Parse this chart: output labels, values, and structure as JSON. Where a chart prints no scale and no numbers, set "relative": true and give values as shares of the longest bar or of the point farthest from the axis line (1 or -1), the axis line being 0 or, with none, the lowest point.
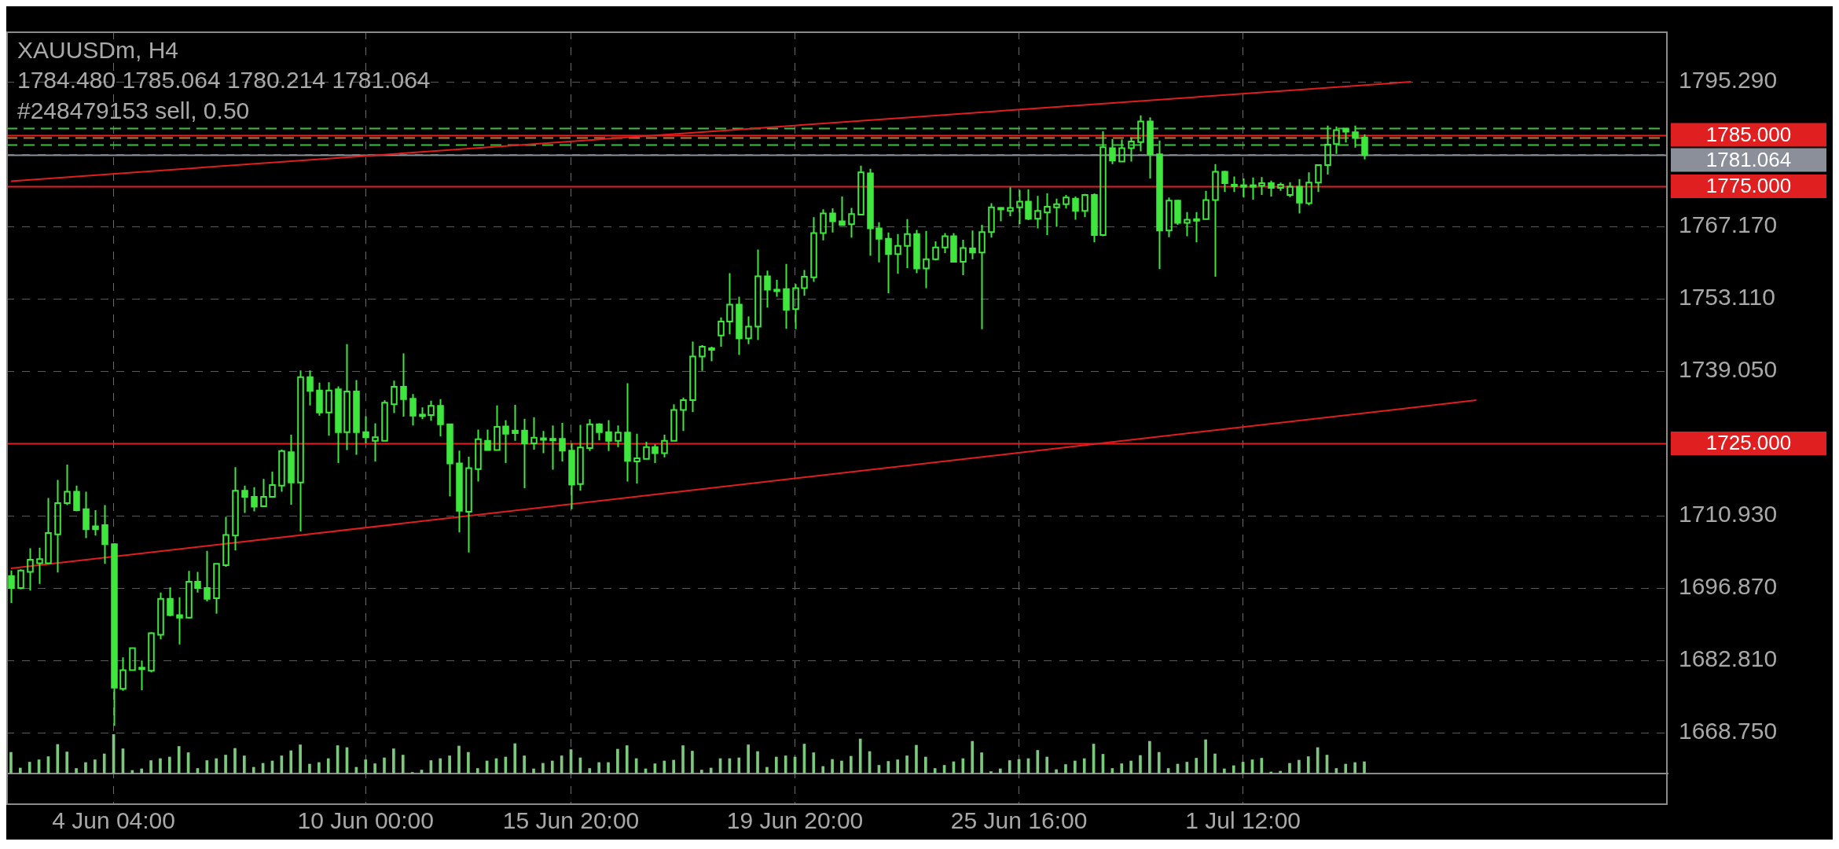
{
  "chart_data": [
    {
      "type": "candlestick",
      "title": "XAUUSDm, H4",
      "subtitle": "1784.480 1785.064 1780.214 1781.064",
      "color": "#3ee63e",
      "grid": true,
      "categories": [
        null,
        null,
        null,
        null,
        null,
        null,
        null,
        null,
        null,
        null,
        null,
        "4 Jun 04:00",
        null,
        null,
        null,
        null,
        null,
        null,
        null,
        null,
        null,
        null,
        null,
        null,
        null,
        null,
        null,
        null,
        null,
        null,
        null,
        null,
        null,
        null,
        null,
        null,
        null,
        null,
        "10 Jun 00:00",
        null,
        null,
        null,
        null,
        null,
        null,
        null,
        null,
        null,
        null,
        null,
        null,
        null,
        null,
        null,
        null,
        null,
        null,
        null,
        null,
        null,
        "15 Jun 20:00",
        null,
        null,
        null,
        null,
        null,
        null,
        null,
        null,
        null,
        null,
        null,
        null,
        null,
        null,
        null,
        null,
        null,
        null,
        null,
        null,
        null,
        null,
        null,
        "19 Jun 20:00",
        null,
        null,
        null,
        null,
        null,
        null,
        null,
        null,
        null,
        null,
        null,
        null,
        null,
        null,
        null,
        null,
        null,
        null,
        null,
        null,
        null,
        null,
        null,
        "25 Jun 16:00",
        null,
        null,
        null,
        null,
        null,
        null,
        null,
        null,
        null,
        null,
        null,
        null,
        null,
        null,
        null,
        null,
        null,
        null,
        null,
        null,
        null,
        null,
        null,
        "1 Jul 12:00",
        null,
        null,
        null,
        null,
        null,
        null,
        null,
        null,
        null,
        null,
        null,
        null,
        null,
        null,
        null,
        null,
        null,
        null,
        null,
        null,
        null,
        null,
        null,
        null,
        null,
        null,
        null,
        null,
        null,
        null,
        null,
        null,
        null,
        null,
        null,
        null,
        null,
        null,
        null,
        null,
        null,
        null,
        null,
        null,
        null
      ],
      "ylim": [
        1654.7,
        1805.1
      ],
      "yticks": [
        {
          "value": 1795.29,
          "label": "1795.290"
        },
        {
          "value": 1781.23,
          "label": null
        },
        {
          "value": 1767.17,
          "label": "1767.170"
        },
        {
          "value": 1753.11,
          "label": "1753.110"
        },
        {
          "value": 1739.05,
          "label": "1739.050"
        },
        {
          "value": 1724.99,
          "label": null
        },
        {
          "value": 1710.93,
          "label": "1710.930"
        },
        {
          "value": 1696.87,
          "label": "1696.870"
        },
        {
          "value": 1682.81,
          "label": "1682.810"
        },
        {
          "value": 1668.75,
          "label": "1668.750"
        }
      ],
      "ohlc": [
        [
          1699.2,
          1700.3,
          1694.0,
          1696.9
        ],
        [
          1696.9,
          1700.5,
          1696.6,
          1700.3
        ],
        [
          1700.0,
          1704.6,
          1696.4,
          1702.4
        ],
        [
          1701.7,
          1704.7,
          1697.7,
          1702.5
        ],
        [
          1701.7,
          1714.4,
          1701.6,
          1707.6
        ],
        [
          1707.3,
          1717.9,
          1699.9,
          1713.4
        ],
        [
          1713.4,
          1720.9,
          1713.0,
          1715.6
        ],
        [
          1715.6,
          1716.8,
          1711.8,
          1712.0
        ],
        [
          1712.2,
          1715.6,
          1706.6,
          1708.3
        ],
        [
          1708.9,
          1712.0,
          1707.1,
          1708.3
        ],
        [
          1709.1,
          1713.0,
          1701.6,
          1705.4
        ],
        [
          1705.4,
          1705.6,
          1670.1,
          1677.5
        ],
        [
          1677.3,
          1683.4,
          1676.9,
          1680.9
        ],
        [
          1680.9,
          1685.2,
          1680.9,
          1685.2
        ],
        [
          1681.2,
          1682.8,
          1677.0,
          1681.4
        ],
        [
          1680.8,
          1688.3,
          1680.5,
          1688.1
        ],
        [
          1687.8,
          1696.0,
          1686.9,
          1694.8
        ],
        [
          1694.8,
          1697.0,
          1691.4,
          1691.6
        ],
        [
          1691.6,
          1695.1,
          1685.9,
          1691.1
        ],
        [
          1691.1,
          1700.2,
          1691.0,
          1698.1
        ],
        [
          1698.1,
          1700.0,
          1696.0,
          1696.9
        ],
        [
          1696.9,
          1704.1,
          1694.3,
          1694.8
        ],
        [
          1694.9,
          1701.6,
          1691.9,
          1701.6
        ],
        [
          1701.3,
          1710.7,
          1701.0,
          1707.2
        ],
        [
          1707.1,
          1720.4,
          1704.2,
          1715.8
        ],
        [
          1715.8,
          1716.8,
          1711.5,
          1714.6
        ],
        [
          1714.6,
          1716.5,
          1711.8,
          1712.7
        ],
        [
          1712.8,
          1718.1,
          1712.8,
          1714.6
        ],
        [
          1714.6,
          1719.5,
          1714.6,
          1716.9
        ],
        [
          1716.8,
          1723.8,
          1715.6,
          1723.5
        ],
        [
          1723.3,
          1726.7,
          1713.1,
          1717.4
        ],
        [
          1717.4,
          1739.2,
          1707.9,
          1737.9
        ],
        [
          1737.9,
          1739.2,
          1732.4,
          1735.2
        ],
        [
          1735.3,
          1736.8,
          1730.4,
          1731.0
        ],
        [
          1731.0,
          1736.9,
          1726.5,
          1735.3
        ],
        [
          1735.5,
          1736.1,
          1721.2,
          1727.2
        ],
        [
          1727.2,
          1744.3,
          1723.7,
          1735.1
        ],
        [
          1735.1,
          1737.3,
          1722.8,
          1727.2
        ],
        [
          1727.2,
          1730.3,
          1725.0,
          1726.2
        ],
        [
          1725.5,
          1728.9,
          1721.5,
          1726.2
        ],
        [
          1725.5,
          1733.4,
          1725.5,
          1732.9
        ],
        [
          1732.6,
          1737.2,
          1730.9,
          1736.0
        ],
        [
          1736.0,
          1742.5,
          1730.2,
          1733.6
        ],
        [
          1733.7,
          1734.6,
          1728.5,
          1730.4
        ],
        [
          1730.6,
          1732.0,
          1729.7,
          1730.3
        ],
        [
          1730.5,
          1733.3,
          1729.4,
          1732.3
        ],
        [
          1732.3,
          1733.6,
          1726.4,
          1728.7
        ],
        [
          1728.7,
          1728.7,
          1714.7,
          1721.1
        ],
        [
          1721.1,
          1723.6,
          1707.7,
          1711.9
        ],
        [
          1711.7,
          1722.4,
          1703.8,
          1720.2
        ],
        [
          1720.0,
          1727.7,
          1717.6,
          1725.8
        ],
        [
          1725.5,
          1727.7,
          1723.6,
          1723.7
        ],
        [
          1723.7,
          1732.4,
          1723.7,
          1728.2
        ],
        [
          1728.3,
          1729.5,
          1721.2,
          1726.9
        ],
        [
          1727.5,
          1732.5,
          1725.5,
          1727.0
        ],
        [
          1727.5,
          1729.8,
          1716.3,
          1725.0
        ],
        [
          1725.0,
          1730.1,
          1723.8,
          1726.1
        ],
        [
          1726.0,
          1727.4,
          1723.1,
          1726.0
        ],
        [
          1725.9,
          1728.5,
          1719.9,
          1725.9
        ],
        [
          1725.9,
          1729.0,
          1721.5,
          1723.6
        ],
        [
          1723.6,
          1725.0,
          1712.2,
          1717.0
        ],
        [
          1717.1,
          1728.6,
          1715.8,
          1724.2
        ],
        [
          1724.1,
          1729.7,
          1723.5,
          1728.7
        ],
        [
          1728.7,
          1728.9,
          1725.6,
          1727.2
        ],
        [
          1727.2,
          1729.5,
          1723.5,
          1725.5
        ],
        [
          1725.5,
          1728.5,
          1724.3,
          1727.1
        ],
        [
          1727.1,
          1736.7,
          1717.6,
          1721.6
        ],
        [
          1721.5,
          1726.9,
          1717.2,
          1722.1
        ],
        [
          1722.0,
          1725.3,
          1721.9,
          1724.3
        ],
        [
          1724.3,
          1724.8,
          1721.2,
          1723.1
        ],
        [
          1723.1,
          1726.7,
          1722.3,
          1725.5
        ],
        [
          1725.5,
          1732.6,
          1725.5,
          1731.5
        ],
        [
          1731.5,
          1733.9,
          1727.4,
          1733.4
        ],
        [
          1733.4,
          1744.8,
          1731.1,
          1741.9
        ],
        [
          1741.9,
          1744.1,
          1739.1,
          1743.8
        ],
        [
          1743.5,
          1743.8,
          1741.0,
          1743.2
        ],
        [
          1746.0,
          1749.5,
          1743.8,
          1748.7
        ],
        [
          1748.7,
          1758.1,
          1746.2,
          1752.0
        ],
        [
          1752.0,
          1753.5,
          1742.2,
          1745.4
        ],
        [
          1745.4,
          1749.7,
          1744.3,
          1747.7
        ],
        [
          1747.7,
          1762.7,
          1745.1,
          1757.5
        ],
        [
          1757.5,
          1758.6,
          1751.4,
          1754.9
        ],
        [
          1754.9,
          1756.8,
          1753.5,
          1754.9
        ],
        [
          1755.0,
          1759.9,
          1747.3,
          1751.0
        ],
        [
          1751.1,
          1756.0,
          1747.2,
          1755.2
        ],
        [
          1755.2,
          1758.7,
          1753.7,
          1757.4
        ],
        [
          1757.3,
          1769.0,
          1756.4,
          1765.9
        ],
        [
          1765.9,
          1770.5,
          1764.5,
          1769.7
        ],
        [
          1769.7,
          1770.7,
          1766.0,
          1768.2
        ],
        [
          1768.2,
          1773.0,
          1767.3,
          1767.5
        ],
        [
          1767.6,
          1770.8,
          1765.0,
          1769.6
        ],
        [
          1769.5,
          1779.0,
          1769.4,
          1777.7
        ],
        [
          1777.5,
          1778.4,
          1761.5,
          1766.8
        ],
        [
          1766.8,
          1768.0,
          1760.2,
          1764.8
        ],
        [
          1764.8,
          1766.0,
          1754.2,
          1761.8
        ],
        [
          1761.8,
          1765.7,
          1758.0,
          1763.4
        ],
        [
          1763.4,
          1768.6,
          1759.1,
          1765.7
        ],
        [
          1765.7,
          1766.5,
          1758.1,
          1759.0
        ],
        [
          1759.0,
          1766.3,
          1755.2,
          1760.8
        ],
        [
          1760.8,
          1764.3,
          1760.6,
          1763.1
        ],
        [
          1763.1,
          1765.9,
          1762.0,
          1765.3
        ],
        [
          1765.3,
          1765.9,
          1760.2,
          1760.3
        ],
        [
          1760.3,
          1764.6,
          1757.7,
          1763.0
        ],
        [
          1762.9,
          1766.4,
          1760.8,
          1762.1
        ],
        [
          1762.1,
          1767.5,
          1747.2,
          1766.1
        ],
        [
          1766.1,
          1771.7,
          1765.0,
          1770.9
        ],
        [
          1770.8,
          1770.9,
          1768.2,
          1770.8
        ],
        [
          1770.2,
          1774.8,
          1769.2,
          1770.8
        ],
        [
          1770.9,
          1774.3,
          1767.6,
          1772.0
        ],
        [
          1772.0,
          1774.4,
          1768.4,
          1768.7
        ],
        [
          1768.7,
          1773.1,
          1766.8,
          1770.2
        ],
        [
          1769.9,
          1773.6,
          1765.5,
          1771.0
        ],
        [
          1770.9,
          1772.6,
          1767.1,
          1771.5
        ],
        [
          1771.5,
          1773.3,
          1770.7,
          1772.8
        ],
        [
          1772.6,
          1773.0,
          1768.5,
          1770.2
        ],
        [
          1770.2,
          1773.5,
          1769.0,
          1773.3
        ],
        [
          1773.3,
          1773.6,
          1764.1,
          1765.5
        ],
        [
          1765.5,
          1785.7,
          1765.3,
          1782.6
        ],
        [
          1782.4,
          1784.2,
          1779.3,
          1780.0
        ],
        [
          1779.8,
          1784.1,
          1779.8,
          1782.4
        ],
        [
          1782.4,
          1784.5,
          1779.8,
          1783.7
        ],
        [
          1783.6,
          1788.8,
          1781.8,
          1787.6
        ],
        [
          1787.6,
          1788.4,
          1776.5,
          1781.2
        ],
        [
          1781.2,
          1783.9,
          1758.9,
          1766.4
        ],
        [
          1766.4,
          1772.8,
          1765.1,
          1772.2
        ],
        [
          1772.2,
          1772.3,
          1767.5,
          1767.9
        ],
        [
          1767.9,
          1770.0,
          1765.3,
          1768.5
        ],
        [
          1768.6,
          1770.0,
          1764.1,
          1768.6
        ],
        [
          1768.6,
          1774.1,
          1768.6,
          1772.3
        ],
        [
          1772.3,
          1779.3,
          1757.4,
          1777.8
        ],
        [
          1777.8,
          1778.0,
          1773.9,
          1775.6
        ],
        [
          1775.3,
          1776.9,
          1773.9,
          1775.3
        ],
        [
          1775.2,
          1776.5,
          1772.8,
          1775.2
        ],
        [
          1775.2,
          1776.7,
          1772.4,
          1775.2
        ],
        [
          1775.1,
          1776.8,
          1773.3,
          1775.6
        ],
        [
          1775.6,
          1776.1,
          1773.0,
          1774.7
        ],
        [
          1774.7,
          1775.7,
          1774.1,
          1775.3
        ],
        [
          1773.3,
          1775.8,
          1772.9,
          1774.9
        ],
        [
          1774.9,
          1776.4,
          1769.7,
          1771.8
        ],
        [
          1771.7,
          1777.7,
          1771.3,
          1775.7
        ],
        [
          1775.7,
          1779.2,
          1773.9,
          1779.1
        ],
        [
          1779.1,
          1786.8,
          1777.3,
          1783.1
        ],
        [
          1783.2,
          1786.6,
          1781.3,
          1785.9
        ],
        [
          1786.2,
          1786.3,
          1783.5,
          1785.6
        ],
        [
          1785.5,
          1786.8,
          1782.5,
          1784.4
        ],
        [
          1784.48,
          1785.064,
          1780.214,
          1781.064
        ],
        null,
        null,
        null,
        null,
        null,
        null,
        null,
        null,
        null,
        null,
        null,
        null,
        null,
        null,
        null,
        null,
        null,
        null,
        null,
        null,
        null,
        null,
        null,
        null,
        null,
        null,
        null,
        null,
        null,
        null,
        null,
        null
      ],
      "series": [
        {
          "type": "line",
          "color": "#e01e1e",
          "values": [
            1776.0,
            null,
            null,
            null,
            null,
            null,
            null,
            null,
            null,
            null,
            null,
            null,
            null,
            null,
            null,
            null,
            null,
            null,
            null,
            null,
            null,
            null,
            null,
            null,
            null,
            null,
            null,
            null,
            null,
            null,
            null,
            null,
            null,
            null,
            null,
            null,
            null,
            null,
            null,
            null,
            null,
            null,
            null,
            null,
            null,
            null,
            null,
            null,
            null,
            null,
            null,
            null,
            null,
            null,
            null,
            null,
            null,
            null,
            null,
            null,
            null,
            null,
            null,
            null,
            null,
            null,
            null,
            null,
            null,
            null,
            null,
            null,
            null,
            null,
            null,
            null,
            null,
            null,
            null,
            null,
            null,
            null,
            null,
            null,
            null,
            null,
            null,
            null,
            null,
            null,
            null,
            null,
            null,
            null,
            null,
            null,
            null,
            null,
            null,
            null,
            null,
            null,
            null,
            null,
            null,
            null,
            null,
            null,
            null,
            null,
            null,
            null,
            null,
            null,
            null,
            null,
            null,
            null,
            null,
            null,
            null,
            null,
            null,
            null,
            null,
            null,
            null,
            null,
            null,
            null,
            null,
            null,
            null,
            null,
            null,
            null,
            null,
            null,
            null,
            null,
            null,
            null,
            null,
            null,
            null,
            null,
            null,
            null,
            null,
            null,
            1795.3,
            null,
            null,
            null,
            null,
            null,
            null,
            null,
            null,
            null,
            null,
            null,
            null,
            null,
            null,
            null,
            null,
            null,
            null,
            null,
            null,
            null,
            null,
            null,
            null,
            null,
            null,
            null
          ]
        },
        {
          "type": "line",
          "color": "#e01e1e",
          "values": [
            1700.7,
            null,
            null,
            null,
            null,
            null,
            null,
            null,
            null,
            null,
            null,
            null,
            null,
            null,
            null,
            null,
            null,
            null,
            null,
            null,
            null,
            null,
            null,
            null,
            null,
            null,
            null,
            null,
            null,
            null,
            null,
            null,
            null,
            null,
            null,
            null,
            null,
            null,
            null,
            null,
            null,
            null,
            null,
            null,
            null,
            null,
            null,
            null,
            null,
            null,
            null,
            null,
            null,
            null,
            null,
            null,
            null,
            null,
            null,
            null,
            null,
            null,
            null,
            null,
            null,
            null,
            null,
            null,
            null,
            null,
            null,
            null,
            null,
            null,
            null,
            null,
            null,
            null,
            null,
            null,
            null,
            null,
            null,
            null,
            null,
            null,
            null,
            null,
            null,
            null,
            null,
            null,
            null,
            null,
            null,
            null,
            null,
            null,
            null,
            null,
            null,
            null,
            null,
            null,
            null,
            null,
            null,
            null,
            null,
            null,
            null,
            null,
            null,
            null,
            null,
            null,
            null,
            null,
            null,
            null,
            null,
            null,
            null,
            null,
            null,
            null,
            null,
            null,
            null,
            null,
            null,
            null,
            null,
            null,
            null,
            null,
            null,
            null,
            null,
            null,
            null,
            null,
            null,
            null,
            null,
            null,
            null,
            null,
            null,
            null,
            null,
            null,
            null,
            null,
            null,
            null,
            null,
            1733.4,
            null,
            null,
            null,
            null,
            null,
            null,
            null,
            null,
            null,
            null,
            null,
            null,
            null,
            null,
            null,
            null,
            null,
            null,
            null,
            null
          ]
        }
      ],
      "ref_lines": [
        {
          "axis": "y",
          "value": 1786.3,
          "color": "#3fbf3f",
          "line_style": "dashed"
        },
        {
          "axis": "y",
          "value": 1785,
          "label": "1785.000",
          "color": "#e02020",
          "line_style": "solid"
        },
        {
          "axis": "y",
          "value": 1784.5,
          "label": "#248479153 sell, 0.50",
          "color": "#c07a30",
          "line_style": "dashed"
        },
        {
          "axis": "y",
          "value": 1783.1,
          "color": "#3fbf3f",
          "line_style": "dashed"
        },
        {
          "axis": "y",
          "value": 1781.064,
          "label": "1781.064",
          "color": "#8a8f99",
          "line_style": "solid"
        },
        {
          "axis": "y",
          "value": 1775,
          "label": "1775.000",
          "color": "#e02020",
          "line_style": "solid"
        },
        {
          "axis": "y",
          "value": 1725,
          "label": "1725.000",
          "color": "#e02020",
          "line_style": "solid"
        }
      ]
    },
    {
      "type": "bar",
      "relative": true,
      "color": "#7cc87c",
      "categories": [
        null,
        null,
        null,
        null,
        null,
        null,
        null,
        null,
        null,
        null,
        null,
        null,
        null,
        null,
        null,
        null,
        null,
        null,
        null,
        null,
        null,
        null,
        null,
        null,
        null,
        null,
        null,
        null,
        null,
        null,
        null,
        null,
        null,
        null,
        null,
        null,
        null,
        null,
        null,
        null,
        null,
        null,
        null,
        null,
        null,
        null,
        null,
        null,
        null,
        null,
        null,
        null,
        null,
        null,
        null,
        null,
        null,
        null,
        null,
        null,
        null,
        null,
        null,
        null,
        null,
        null,
        null,
        null,
        null,
        null,
        null,
        null,
        null,
        null,
        null,
        null,
        null,
        null,
        null,
        null,
        null,
        null,
        null,
        null,
        null,
        null,
        null,
        null,
        null,
        null,
        null,
        null,
        null,
        null,
        null,
        null,
        null,
        null,
        null,
        null,
        null,
        null,
        null,
        null,
        null,
        null,
        null,
        null,
        null,
        null,
        null,
        null,
        null,
        null,
        null,
        null,
        null,
        null,
        null,
        null,
        null,
        null,
        null,
        null,
        null,
        null,
        null,
        null,
        null,
        null,
        null,
        null,
        null,
        null,
        null,
        null,
        null,
        null,
        null,
        null,
        null,
        null,
        null,
        null,
        null,
        null,
        null,
        null,
        null,
        null,
        null,
        null,
        null,
        null,
        null,
        null,
        null,
        null,
        null,
        null,
        null,
        null,
        null,
        null,
        null,
        null,
        null,
        null,
        null,
        null,
        null,
        null,
        null,
        null,
        null,
        null,
        null,
        null
      ],
      "values": [
        0.54,
        0.14,
        0.29,
        0.35,
        0.43,
        0.74,
        0.55,
        0.13,
        0.28,
        0.35,
        0.5,
        1,
        0.63,
        0.08,
        0.12,
        0.33,
        0.38,
        0.42,
        0.69,
        0.53,
        0.13,
        0.33,
        0.38,
        0.47,
        0.64,
        0.45,
        0.16,
        0.26,
        0.32,
        0.45,
        0.58,
        0.73,
        0.24,
        0.28,
        0.38,
        0.71,
        0.66,
        0.16,
        0.35,
        0.25,
        0.4,
        0.63,
        0.47,
        0.03,
        0.09,
        0.33,
        0.38,
        0.45,
        0.7,
        0.54,
        0.13,
        0.32,
        0.38,
        0.42,
        0.76,
        0.45,
        0.12,
        0.26,
        0.32,
        0.45,
        0.61,
        0.4,
        0.13,
        0.28,
        0.28,
        0.62,
        0.71,
        0.38,
        0.12,
        0.25,
        0.32,
        0.34,
        0.71,
        0.57,
        0.09,
        0.14,
        0.38,
        0.38,
        0.4,
        0.73,
        0.56,
        0.16,
        0.42,
        0.45,
        0.42,
        0.75,
        0.53,
        0.18,
        0.36,
        0.32,
        0.44,
        0.88,
        0.56,
        0.21,
        0.31,
        0.35,
        0.45,
        0.72,
        0.42,
        0.13,
        0.21,
        0.3,
        0.38,
        0.82,
        0.53,
        0.05,
        0.12,
        0.33,
        0.36,
        0.38,
        0.59,
        0.42,
        0.1,
        0.23,
        0.32,
        0.38,
        0.75,
        0.49,
        0.13,
        0.25,
        0.32,
        0.46,
        0.82,
        0.54,
        0.13,
        0.24,
        0.29,
        0.39,
        0.86,
        0.5,
        0.12,
        0.2,
        0.29,
        0.35,
        0.39,
        0.04,
        0.06,
        0.26,
        0.34,
        0.43,
        0.66,
        0.47,
        0.13,
        0.24,
        0.28,
        0.3,
        null,
        null,
        null,
        null,
        null,
        null,
        null,
        null,
        null,
        null,
        null,
        null,
        null,
        null,
        null,
        null,
        null,
        null,
        null,
        null,
        null,
        null,
        null,
        null,
        null,
        null,
        null,
        null,
        null,
        null,
        null,
        null
      ]
    }
  ]
}
